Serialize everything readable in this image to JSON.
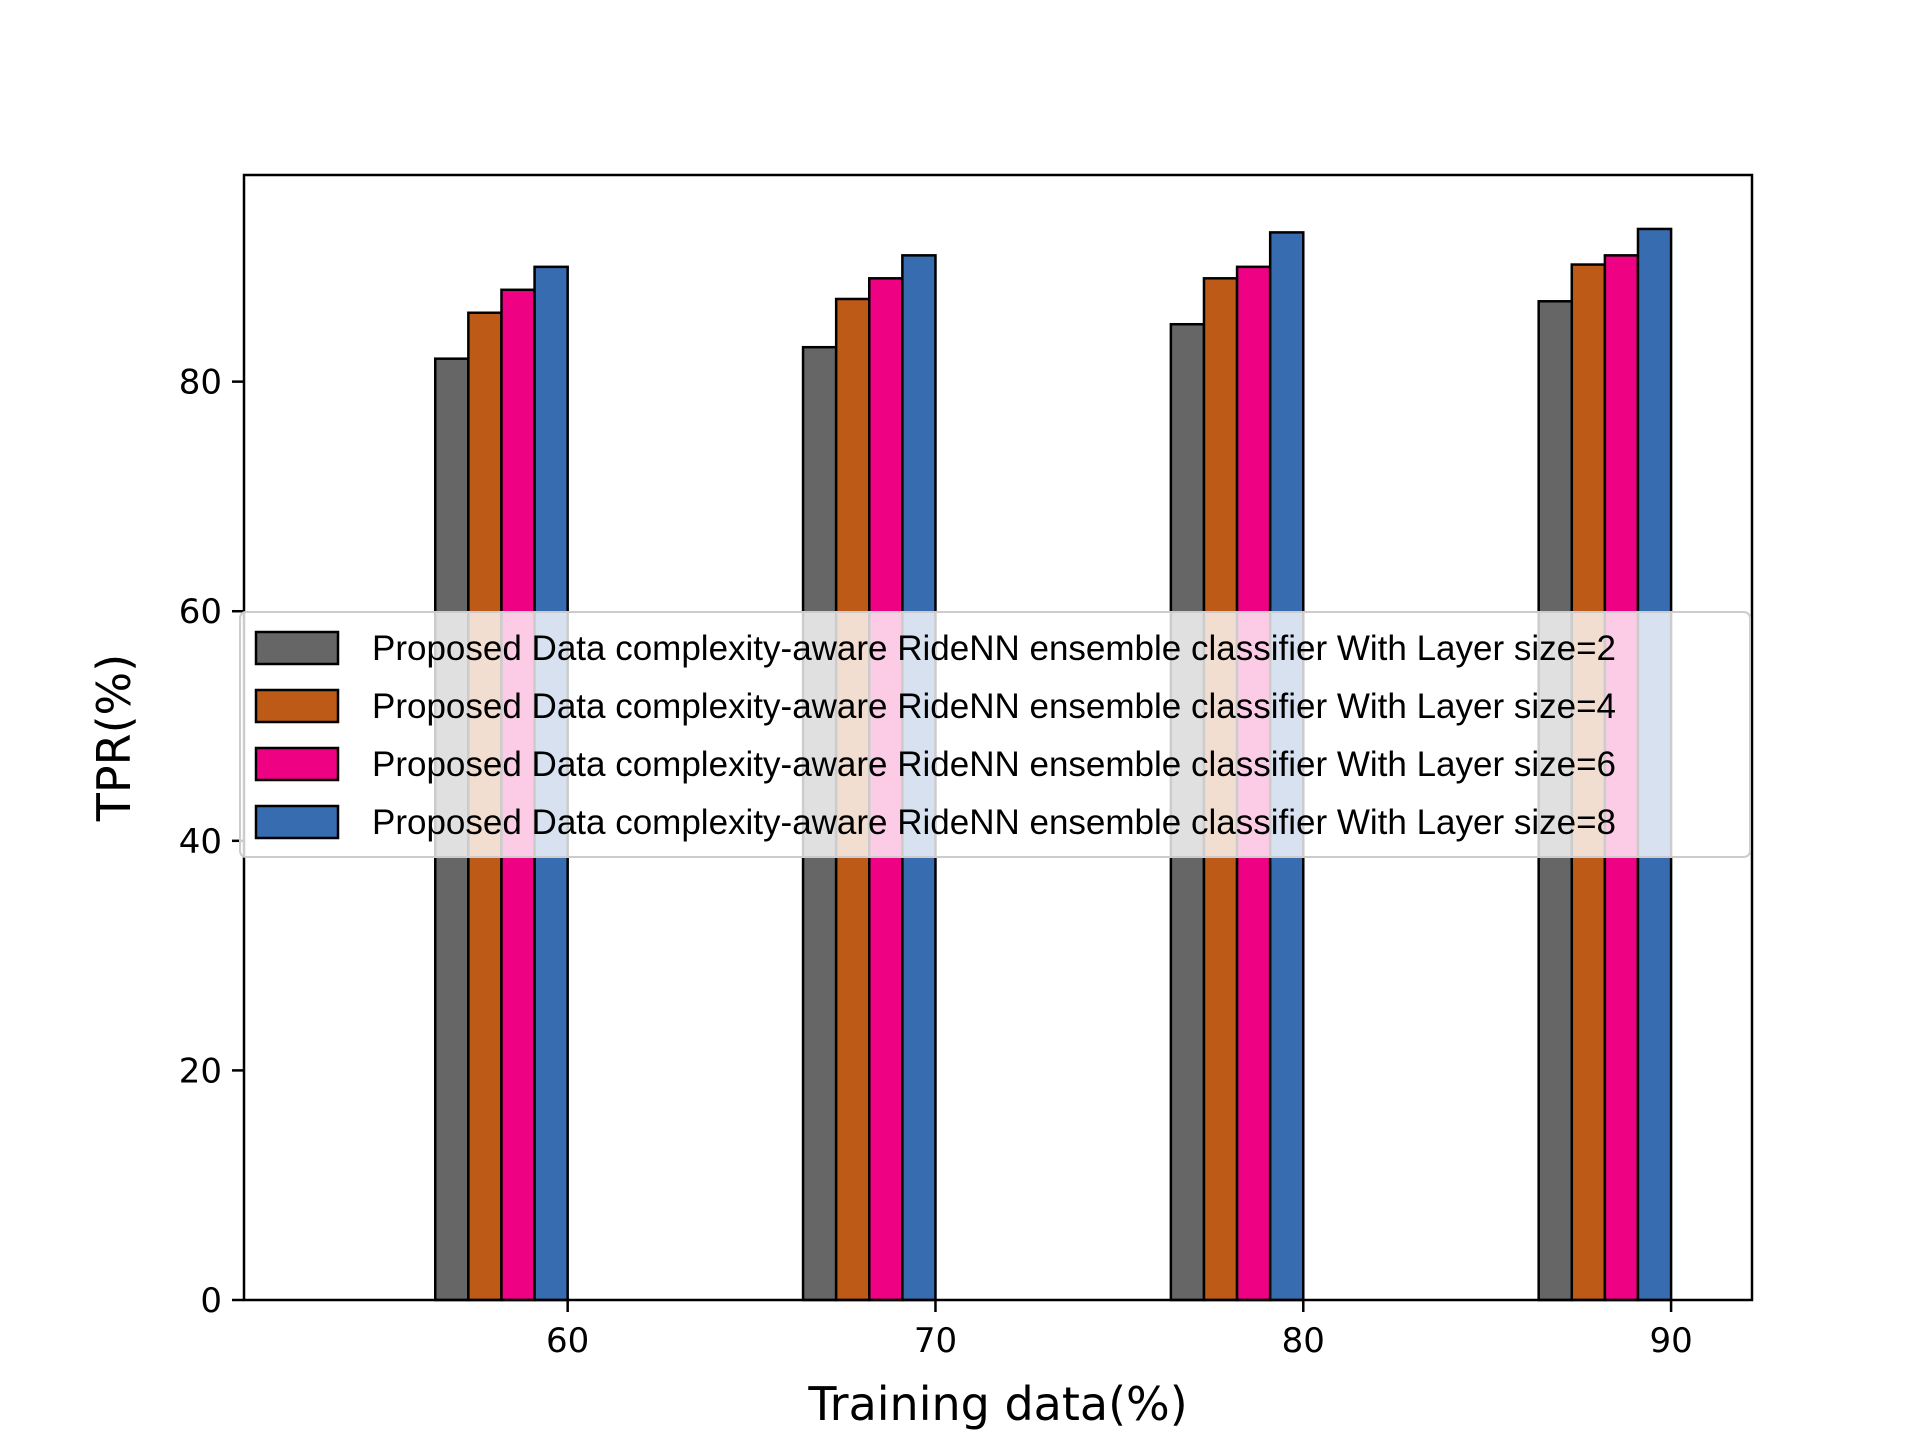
{
  "chart_data": {
    "type": "bar",
    "categories": [
      "60",
      "70",
      "80",
      "90"
    ],
    "xlabel": "Training data(%)",
    "ylabel": "TPR(%)",
    "ylim": [
      0,
      98
    ],
    "yticks": [
      0,
      20,
      40,
      60,
      80
    ],
    "grid": false,
    "legend_position": "center",
    "series": [
      {
        "name": "Proposed Data complexity-aware RideNN ensemble classifier  With Layer size=2",
        "color": "#666666",
        "values": [
          82,
          83,
          85,
          87
        ]
      },
      {
        "name": "Proposed Data complexity-aware RideNN ensemble classifier With Layer size=4",
        "color": "#BE5A17",
        "values": [
          86,
          87.2,
          89,
          90.2
        ]
      },
      {
        "name": "Proposed Data complexity-aware RideNN ensemble classifier With Layer size=6",
        "color": "#EE0283",
        "values": [
          88,
          89,
          90,
          91
        ]
      },
      {
        "name": "Proposed Data complexity-aware RideNN ensemble classifier With Layer size=8",
        "color": "#386CB0",
        "values": [
          90,
          91,
          93,
          93.3
        ]
      }
    ]
  }
}
